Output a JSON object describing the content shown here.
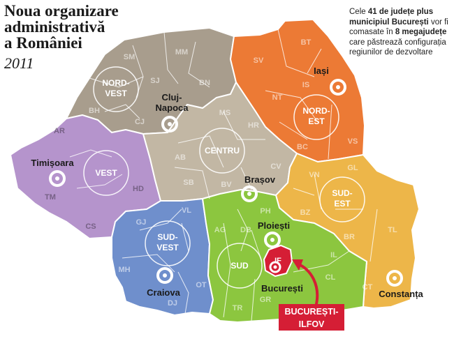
{
  "title_lines": [
    "Noua organizare",
    "administrativă",
    "a României"
  ],
  "year": "2011",
  "note": {
    "p1": "Cele ",
    "b1": "41 de județe plus municipiul București",
    "p2": " vor fi comasate în ",
    "b2": "8 megajudețe",
    "p3": " care păstrează configurația regiunilor de dezvoltare"
  },
  "regions": [
    {
      "key": "nord-vest",
      "label": "NORD-VEST",
      "label_lines": [
        "NORD-",
        "VEST"
      ],
      "color": "#a89d8d"
    },
    {
      "key": "nord-est",
      "label": "NORD-EST",
      "label_lines": [
        "NORD-",
        "EST"
      ],
      "color": "#ec7a35"
    },
    {
      "key": "vest",
      "label": "VEST",
      "label_lines": [
        "VEST"
      ],
      "color": "#b594cc"
    },
    {
      "key": "centru",
      "label": "CENTRU",
      "label_lines": [
        "CENTRU"
      ],
      "color": "#c2b7a4"
    },
    {
      "key": "sud-est",
      "label": "SUD-EST",
      "label_lines": [
        "SUD-",
        "EST"
      ],
      "color": "#edb649"
    },
    {
      "key": "sud-vest",
      "label": "SUD-VEST",
      "label_lines": [
        "SUD-",
        "VEST"
      ],
      "color": "#6f8fcc"
    },
    {
      "key": "sud",
      "label": "SUD",
      "label_lines": [
        "SUD"
      ],
      "color": "#8cc63f"
    },
    {
      "key": "bucuresti-ilfov",
      "label": "BUCUREȘTI-ILFOV",
      "label_lines": [
        "BUCUREȘTI-",
        "ILFOV"
      ],
      "color": "#d51e35"
    }
  ],
  "counties": [
    "SM",
    "MM",
    "SJ",
    "BN",
    "BH",
    "CJ",
    "SV",
    "BT",
    "IS",
    "NT",
    "BC",
    "VS",
    "AR",
    "TM",
    "HD",
    "CS",
    "MS",
    "HR",
    "AB",
    "CV",
    "SB",
    "BV",
    "VN",
    "GL",
    "BZ",
    "BR",
    "TL",
    "CT",
    "PH",
    "DB",
    "AG",
    "IL",
    "CL",
    "GR",
    "TR",
    "OT",
    "DJ",
    "GJ",
    "VL",
    "MH",
    "IF"
  ],
  "cities": [
    "Cluj-Napoca",
    "Iași",
    "Timișoara",
    "Brașov",
    "Ploiești",
    "Craiova",
    "București",
    "Constanța"
  ],
  "colors": {
    "border": "#ffffff",
    "inner_border": "#ffffff",
    "city_ring": "#ffffff",
    "badge": "#d51e35"
  }
}
